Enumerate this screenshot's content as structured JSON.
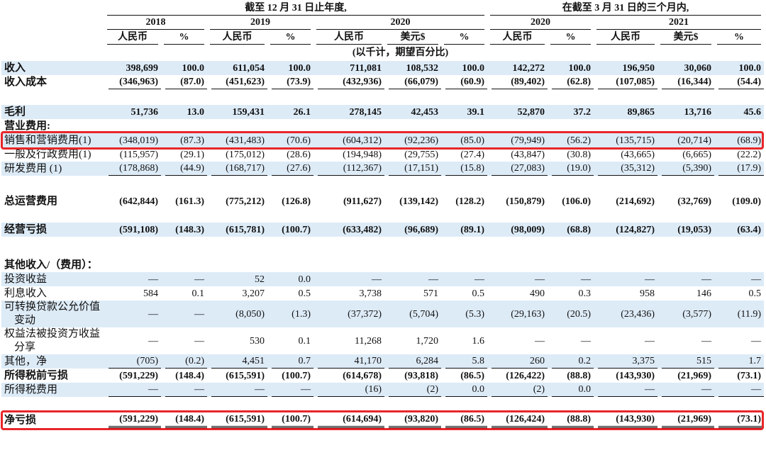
{
  "header": {
    "period_years": "截至 12 月 31 日止年度,",
    "period_quarter": "在截至 3 月 31 日的三个月内,",
    "years": [
      "2018",
      "2019",
      "2020",
      "2020",
      "2021"
    ],
    "currencies": [
      "人民币",
      "%",
      "人民币",
      "%",
      "人民币",
      "美元$",
      "%",
      "人民币",
      "%",
      "人民币",
      "美元$",
      "%"
    ],
    "unit_note": "(以千计，期望百分比)"
  },
  "table": {
    "rows": [
      {
        "label": "收入",
        "cells": [
          "398,699",
          "100.0",
          "611,054",
          "100.0",
          "711,081",
          "108,532",
          "100.0",
          "142,272",
          "100.0",
          "196,950",
          "30,060",
          "100.0"
        ]
      },
      {
        "label": "收入成本",
        "cells": [
          "(346,963)",
          "(87.0)",
          "(451,623)",
          "(73.9)",
          "(432,936)",
          "(66,079)",
          "(60.9)",
          "(89,402)",
          "(62.8)",
          "(107,085)",
          "(16,344)",
          "(54.4)"
        ]
      },
      {
        "label": "毛利",
        "cells": [
          "51,736",
          "13.0",
          "159,431",
          "26.1",
          "278,145",
          "42,453",
          "39.1",
          "52,870",
          "37.2",
          "89,865",
          "13,716",
          "45.6"
        ]
      },
      {
        "label": "营业费用:"
      },
      {
        "label": "销售和营销费用(1)",
        "cells": [
          "(348,019)",
          "(87.3)",
          "(431,483)",
          "(70.6)",
          "(604,312)",
          "(92,236)",
          "(85.0)",
          "(79,949)",
          "(56.2)",
          "(135,715)",
          "(20,714)",
          "(68.9)"
        ]
      },
      {
        "label": "一般及行政费用(1)",
        "cells": [
          "(115,957)",
          "(29.1)",
          "(175,012)",
          "(28.6)",
          "(194,948)",
          "(29,755)",
          "(27.4)",
          "(43,847)",
          "(30.8)",
          "(43,665)",
          "(6,665)",
          "(22.2)"
        ]
      },
      {
        "label": "研发费用 (1)",
        "cells": [
          "(178,868)",
          "(44.9)",
          "(168,717)",
          "(27.6)",
          "(112,367)",
          "(17,151)",
          "(15.8)",
          "(27,083)",
          "(19.0)",
          "(35,312)",
          "(5,390)",
          "(17.9)"
        ]
      },
      {
        "label": "总运营费用",
        "cells": [
          "(642,844)",
          "(161.3)",
          "(775,212)",
          "(126.8)",
          "(911,627)",
          "(139,142)",
          "(128.2)",
          "(150,879)",
          "(106.0)",
          "(214,692)",
          "(32,769)",
          "(109.0)"
        ]
      },
      {
        "label": "经营亏损",
        "cells": [
          "(591,108)",
          "(148.3)",
          "(615,781)",
          "(100.7)",
          "(633,482)",
          "(96,689)",
          "(89.1)",
          "(98,009)",
          "(68.8)",
          "(124,827)",
          "(19,053)",
          "(63.4)"
        ]
      },
      {
        "label": "其他收入/（费用）："
      },
      {
        "label": "投资收益",
        "cells": [
          "—",
          "—",
          "52",
          "0.0",
          "—",
          "—",
          "—",
          "—",
          "—",
          "—",
          "—",
          "—"
        ]
      },
      {
        "label": "利息收入",
        "cells": [
          "584",
          "0.1",
          "3,207",
          "0.5",
          "3,738",
          "571",
          "0.5",
          "490",
          "0.3",
          "958",
          "146",
          "0.5"
        ]
      },
      {
        "label": "可转换贷款公允价值变动",
        "cells": [
          "—",
          "—",
          "(8,050)",
          "(1.3)",
          "(37,372)",
          "(5,704)",
          "(5.3)",
          "(29,163)",
          "(20.5)",
          "(23,436)",
          "(3,577)",
          "(11.9)"
        ]
      },
      {
        "label": "权益法被投资方收益分享",
        "cells": [
          "—",
          "—",
          "530",
          "0.1",
          "11,268",
          "1,720",
          "1.6",
          "—",
          "—",
          "—",
          "—",
          "—"
        ]
      },
      {
        "label": "其他，净",
        "cells": [
          "(705)",
          "(0.2)",
          "4,451",
          "0.7",
          "41,170",
          "6,284",
          "5.8",
          "260",
          "0.2",
          "3,375",
          "515",
          "1.7"
        ]
      },
      {
        "label": "所得税前亏损",
        "cells": [
          "(591,229)",
          "(148.4)",
          "(615,591)",
          "(100.7)",
          "(614,678)",
          "(93,818)",
          "(86.5)",
          "(126,422)",
          "(88.8)",
          "(143,930)",
          "(21,969)",
          "(73.1)"
        ]
      },
      {
        "label": "所得税费用",
        "cells": [
          "—",
          "—",
          "—",
          "—",
          "(16)",
          "(2)",
          "0.0",
          "(2)",
          "0.0",
          "—",
          "—",
          "—"
        ]
      },
      {
        "label": "净亏损",
        "cells": [
          "(591,229)",
          "(148.4)",
          "(615,591)",
          "(100.7)",
          "(614,694)",
          "(93,820)",
          "(86.5)",
          "(126,424)",
          "(88.8)",
          "(143,930)",
          "(21,969)",
          "(73.1)"
        ]
      }
    ]
  }
}
